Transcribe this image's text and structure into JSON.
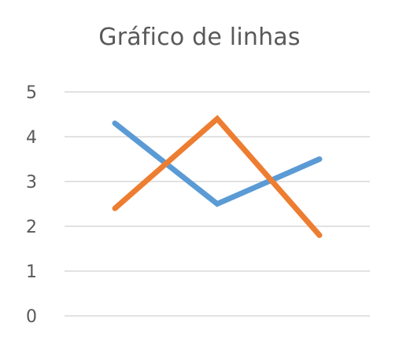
{
  "chart_data": {
    "type": "line",
    "title": "Gráfico de linhas",
    "xlabel": "",
    "ylabel": "",
    "ylim": [
      0,
      5
    ],
    "yticks": [
      0,
      1,
      2,
      3,
      4,
      5
    ],
    "grid": true,
    "legend": "none",
    "x": [
      1,
      2,
      3
    ],
    "series": [
      {
        "color": "#5B9BD5",
        "values": [
          4.3,
          2.5,
          3.5
        ]
      },
      {
        "color": "#ED7D31",
        "values": [
          2.4,
          4.4,
          1.8
        ]
      }
    ]
  }
}
